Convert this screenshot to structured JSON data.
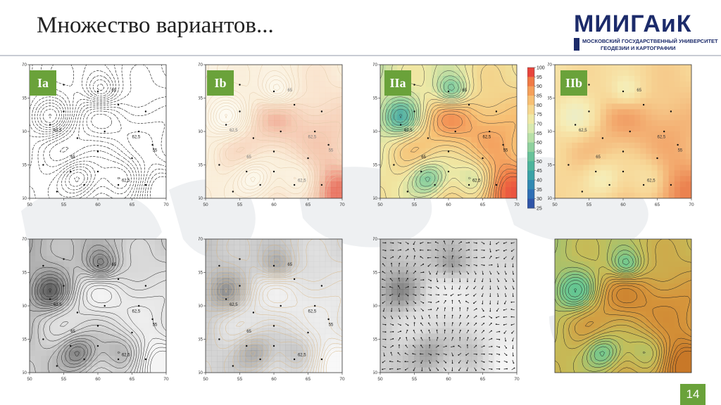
{
  "slide": {
    "title": "Множество вариантов...",
    "page_number": "14"
  },
  "logo": {
    "name": "МИИГАиК",
    "line1": "МОСКОВСКИЙ ГОСУДАРСТВЕННЫЙ УНИВЕРСИТЕТ",
    "line2": "ГЕОДЕЗИИ И КАРТОГРАФИИ"
  },
  "axis": {
    "x_ticks": [
      "50",
      "55",
      "60",
      "65",
      "70"
    ],
    "y_ticks": [
      "50",
      "55",
      "60",
      "65",
      "70"
    ]
  },
  "contour_labels": {
    "a": "62,5",
    "b": "65",
    "c": "55"
  },
  "panels": [
    {
      "id": "Ia",
      "badge": "Ia",
      "style": "contours-only"
    },
    {
      "id": "Ib",
      "badge": "Ib",
      "style": "contours-light"
    },
    {
      "id": "IIa",
      "badge": "IIa",
      "style": "contours-colored"
    },
    {
      "id": "IIb",
      "badge": "IIb",
      "style": "colored-smooth"
    },
    {
      "id": "IIIa",
      "badge": "",
      "style": "contours-grayscale"
    },
    {
      "id": "IIIb",
      "badge": "",
      "style": "contours-gray-light"
    },
    {
      "id": "IVa",
      "badge": "",
      "style": "vector-field"
    },
    {
      "id": "IVb",
      "badge": "",
      "style": "colored-relief"
    }
  ],
  "colorbar": {
    "ticks": [
      "100",
      "95",
      "90",
      "85",
      "80",
      "75",
      "70",
      "65",
      "60",
      "55",
      "50",
      "45",
      "40",
      "35",
      "30",
      "25"
    ],
    "colors": [
      "#e8453c",
      "#f07a45",
      "#f5a05a",
      "#f7c074",
      "#f6d890",
      "#efe9a6",
      "#d9eab0",
      "#b8e0a8",
      "#8fd19e",
      "#68c29a",
      "#4db49c",
      "#3ba2a6",
      "#3189b2",
      "#2f6fb5",
      "#2f55a8"
    ]
  }
}
